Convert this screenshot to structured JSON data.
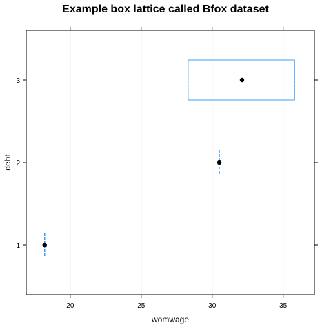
{
  "chart_data": {
    "type": "box",
    "title": "Example box lattice called Bfox dataset",
    "xlabel": "womwage",
    "ylabel": "debt",
    "xlim": [
      16.9,
      37.2
    ],
    "ylim": [
      0.4,
      3.6
    ],
    "x_ticks": [
      20,
      25,
      30,
      35
    ],
    "y_ticks": [
      1,
      2,
      3
    ],
    "grid": "vertical",
    "colors": {
      "box": "#3c9bff",
      "median_dot": "#000000",
      "grid": "#e6e6e6",
      "frame": "#000000"
    },
    "boxes": [
      {
        "category": "1",
        "q1": 18.2,
        "median": 18.2,
        "q3": 18.2,
        "whisker_low": 18.2,
        "whisker_high": 18.2
      },
      {
        "category": "2",
        "q1": 30.5,
        "median": 30.5,
        "q3": 30.5,
        "whisker_low": 30.5,
        "whisker_high": 30.5
      },
      {
        "category": "3",
        "q1": 28.3,
        "median": 32.1,
        "q3": 35.8,
        "whisker_low": 28.3,
        "whisker_high": 35.8
      }
    ]
  }
}
